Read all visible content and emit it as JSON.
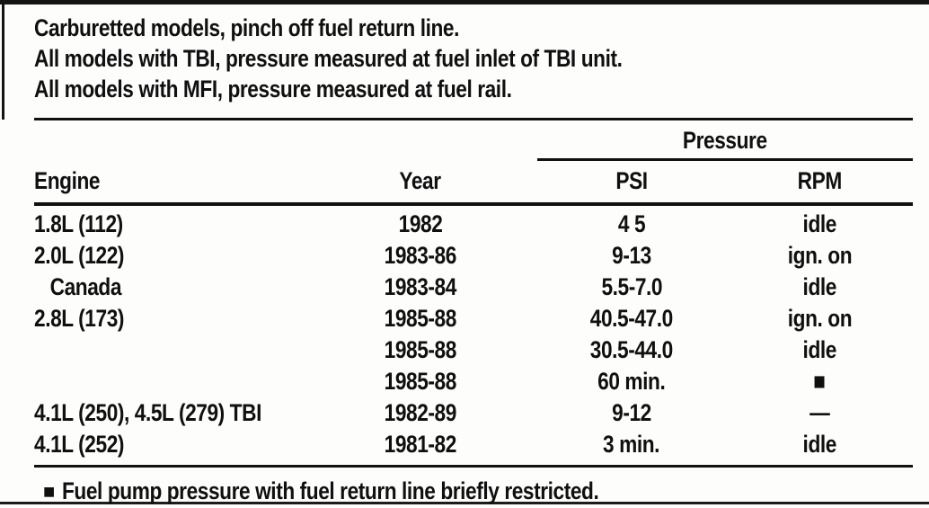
{
  "colors": {
    "ink": "#111111",
    "paper": "#fdfdfc"
  },
  "intro": {
    "lines": [
      "Carburetted models, pinch off fuel return line.",
      "All models with TBI, pressure measured at fuel inlet of TBI unit.",
      "All models with MFI, pressure measured at fuel rail."
    ]
  },
  "table": {
    "pressure_group_label": "Pressure",
    "columns": {
      "engine": "Engine",
      "year": "Year",
      "psi": "PSI",
      "rpm": "RPM"
    },
    "rows": [
      {
        "engine": "1.8L (112)",
        "year": "1982",
        "psi": "4 5",
        "rpm": "idle"
      },
      {
        "engine": "2.0L (122)",
        "year": "1983-86",
        "psi": "9-13",
        "rpm": "ign. on"
      },
      {
        "engine": "   Canada",
        "year": "1983-84",
        "psi": "5.5-7.0",
        "rpm": "idle"
      },
      {
        "engine": "2.8L (173)",
        "year": "1985-88",
        "psi": "40.5-47.0",
        "rpm": "ign. on"
      },
      {
        "engine": "",
        "year": "1985-88",
        "psi": "30.5-44.0",
        "rpm": "idle"
      },
      {
        "engine": "",
        "year": "1985-88",
        "psi": "60 min.",
        "rpm": "■"
      },
      {
        "engine": "4.1L (250), 4.5L (279) TBI",
        "year": "1982-89",
        "psi": "9-12",
        "rpm": "—"
      },
      {
        "engine": "4.1L (252)",
        "year": "1981-82",
        "psi": "3 min.",
        "rpm": "idle"
      }
    ]
  },
  "footnote": {
    "bullet": "■",
    "text": "Fuel pump pressure with fuel return line briefly restricted."
  }
}
